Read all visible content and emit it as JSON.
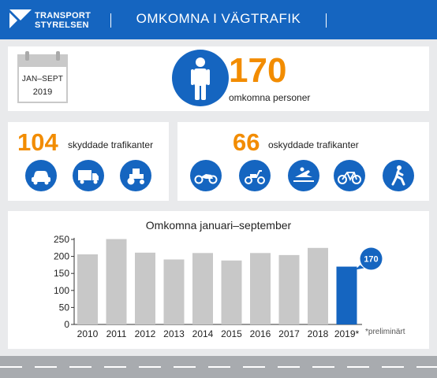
{
  "header": {
    "logo_line1": "TRANSPORT",
    "logo_line2": "STYRELSEN",
    "title": "OMKOMNA I VÄGTRAFIK"
  },
  "period": {
    "line1": "JAN–SEPT",
    "line2": "2019"
  },
  "total": {
    "value": "170",
    "label": "omkomna personer"
  },
  "protected": {
    "value": "104",
    "label": "skyddade trafikanter",
    "icons": [
      "car-icon",
      "truck-icon",
      "tractor-icon"
    ]
  },
  "unprotected": {
    "value": "66",
    "label": "oskyddade trafikanter",
    "icons": [
      "motorcycle-icon",
      "moped-icon",
      "snowmobile-icon",
      "bicycle-icon",
      "pedestrian-icon"
    ]
  },
  "colors": {
    "brand_blue": "#1565c0",
    "accent_orange": "#f28c00",
    "bar_grey": "#c8c8c8"
  },
  "chart_data": {
    "type": "bar",
    "title": "Omkomna januari–september",
    "categories": [
      "2010",
      "2011",
      "2012",
      "2013",
      "2014",
      "2015",
      "2016",
      "2017",
      "2018",
      "2019*"
    ],
    "values": [
      206,
      251,
      211,
      191,
      210,
      188,
      210,
      204,
      225,
      170
    ],
    "highlight_index": 9,
    "callout": "170",
    "yticks": [
      0,
      50,
      100,
      150,
      200,
      250
    ],
    "ylim": [
      0,
      250
    ],
    "xlabel": "",
    "ylabel": "",
    "grid": false,
    "footnote": "*preliminärt"
  }
}
